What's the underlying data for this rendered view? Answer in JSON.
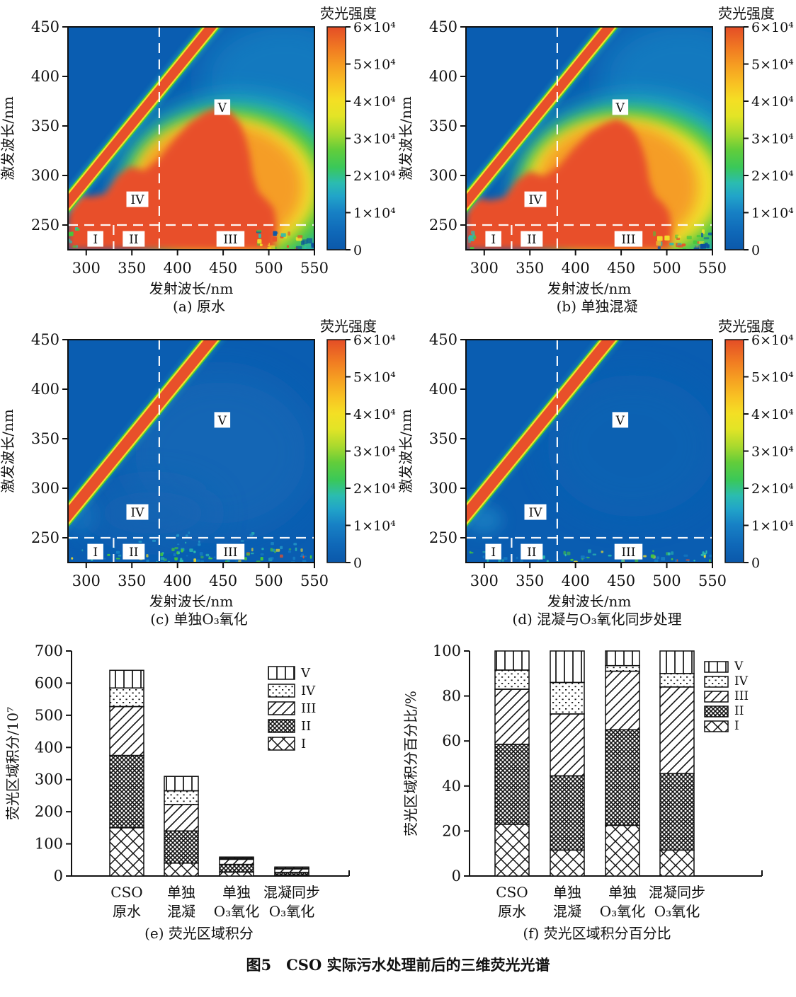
{
  "figure": {
    "main_caption": "图5　CSO 实际污水处理前后的三维荧光光谱"
  },
  "eem_common": {
    "xlabel": "发射波长/nm",
    "ylabel": "激发波长/nm",
    "xlim": [
      280,
      550
    ],
    "ylim": [
      225,
      450
    ],
    "xticks": [
      300,
      350,
      400,
      450,
      500,
      550
    ],
    "yticks": [
      450,
      400,
      350,
      300,
      250
    ],
    "colorbar_title": "荧光强度",
    "colorbar_range": [
      0,
      60000
    ],
    "colorbar_tick_labels": [
      "0",
      "1×10⁴",
      "2×10⁴",
      "3×10⁴",
      "4×10⁴",
      "5×10⁴",
      "6×10⁴"
    ],
    "dividers": {
      "em_nm": [
        330,
        380
      ],
      "ex_nm": [
        250
      ]
    },
    "regions": [
      {
        "label": "I",
        "em": 310,
        "ex": 236
      },
      {
        "label": "II",
        "em": 352,
        "ex": 236
      },
      {
        "label": "III",
        "em": 458,
        "ex": 236
      },
      {
        "label": "IV",
        "em": 356,
        "ex": 276
      },
      {
        "label": "V",
        "em": 449,
        "ex": 369
      }
    ]
  },
  "chart_data": [
    {
      "id": "a",
      "type": "heatmap",
      "title": "(a) 原水",
      "intensity": "strong",
      "xlabel": "发射波长/nm",
      "ylabel": "激发波长/nm",
      "xlim": [
        280,
        550
      ],
      "ylim": [
        225,
        450
      ],
      "colorbar": {
        "title": "荧光强度",
        "min": 0,
        "max": 60000
      }
    },
    {
      "id": "b",
      "type": "heatmap",
      "title": "(b) 单独混凝",
      "intensity": "medium",
      "xlabel": "发射波长/nm",
      "ylabel": "激发波长/nm",
      "xlim": [
        280,
        550
      ],
      "ylim": [
        225,
        450
      ],
      "colorbar": {
        "title": "荧光强度",
        "min": 0,
        "max": 60000
      }
    },
    {
      "id": "c",
      "type": "heatmap",
      "title": "(c) 单独O₃氧化",
      "intensity": "low",
      "xlabel": "发射波长/nm",
      "ylabel": "激发波长/nm",
      "xlim": [
        280,
        550
      ],
      "ylim": [
        225,
        450
      ],
      "colorbar": {
        "title": "荧光强度",
        "min": 0,
        "max": 60000
      }
    },
    {
      "id": "d",
      "type": "heatmap",
      "title": "(d) 混凝与O₃氧化同步处理",
      "intensity": "lowest",
      "xlabel": "发射波长/nm",
      "ylabel": "激发波长/nm",
      "xlim": [
        280,
        550
      ],
      "ylim": [
        225,
        450
      ],
      "colorbar": {
        "title": "荧光强度",
        "min": 0,
        "max": 60000
      }
    },
    {
      "id": "e",
      "type": "bar-stacked",
      "title": "(e) 荧光区域积分",
      "ylabel": "荧光区域积分/10⁷",
      "xlabel": "",
      "ylim": [
        0,
        700
      ],
      "yticks": [
        0,
        100,
        200,
        300,
        400,
        500,
        600,
        700
      ],
      "categories": [
        [
          "CSO",
          "原水"
        ],
        [
          "单独",
          "混凝"
        ],
        [
          "单独",
          "O₃氧化"
        ],
        [
          "混凝同步",
          "O₃氧化"
        ]
      ],
      "series": [
        {
          "name": "I",
          "values": [
            150,
            40,
            12,
            3
          ]
        },
        {
          "name": "II",
          "values": [
            225,
            100,
            24,
            8
          ]
        },
        {
          "name": "III",
          "values": [
            152,
            82,
            16,
            11
          ]
        },
        {
          "name": "IV",
          "values": [
            58,
            43,
            3.5,
            2
          ]
        },
        {
          "name": "V",
          "values": [
            55,
            45,
            3.5,
            4
          ]
        }
      ],
      "legend": [
        "V",
        "IV",
        "III",
        "II",
        "I"
      ],
      "legend_position": "upper-right"
    },
    {
      "id": "f",
      "type": "bar-stacked",
      "title": "(f) 荧光区域积分百分比",
      "ylabel": "荧光区域积分百分比/%",
      "xlabel": "",
      "ylim": [
        0,
        100
      ],
      "yticks": [
        0,
        20,
        40,
        60,
        80,
        100
      ],
      "categories": [
        [
          "CSO",
          "原水"
        ],
        [
          "单独",
          "混凝"
        ],
        [
          "单独",
          "O₃氧化"
        ],
        [
          "混凝同步",
          "O₃氧化"
        ]
      ],
      "series": [
        {
          "name": "I",
          "values": [
            23,
            11.5,
            22.5,
            11.5
          ]
        },
        {
          "name": "II",
          "values": [
            35.5,
            33,
            42.5,
            34
          ]
        },
        {
          "name": "III",
          "values": [
            24.5,
            27.5,
            26,
            38.5
          ]
        },
        {
          "name": "IV",
          "values": [
            8.5,
            14,
            2.5,
            6
          ]
        },
        {
          "name": "V",
          "values": [
            8.5,
            14,
            6.5,
            10
          ]
        }
      ],
      "legend": [
        "V",
        "IV",
        "III",
        "II",
        "I"
      ],
      "legend_position": "right"
    }
  ],
  "colors": {
    "background_blue": "#0a5db1",
    "scatter_red": "#e8502a",
    "edge_yellow": "#f2df2a",
    "edge_green": "#45c83d",
    "edge_cyan": "#2bbcb0",
    "axis_black": "#111111",
    "divider_white": "#ffffff"
  }
}
